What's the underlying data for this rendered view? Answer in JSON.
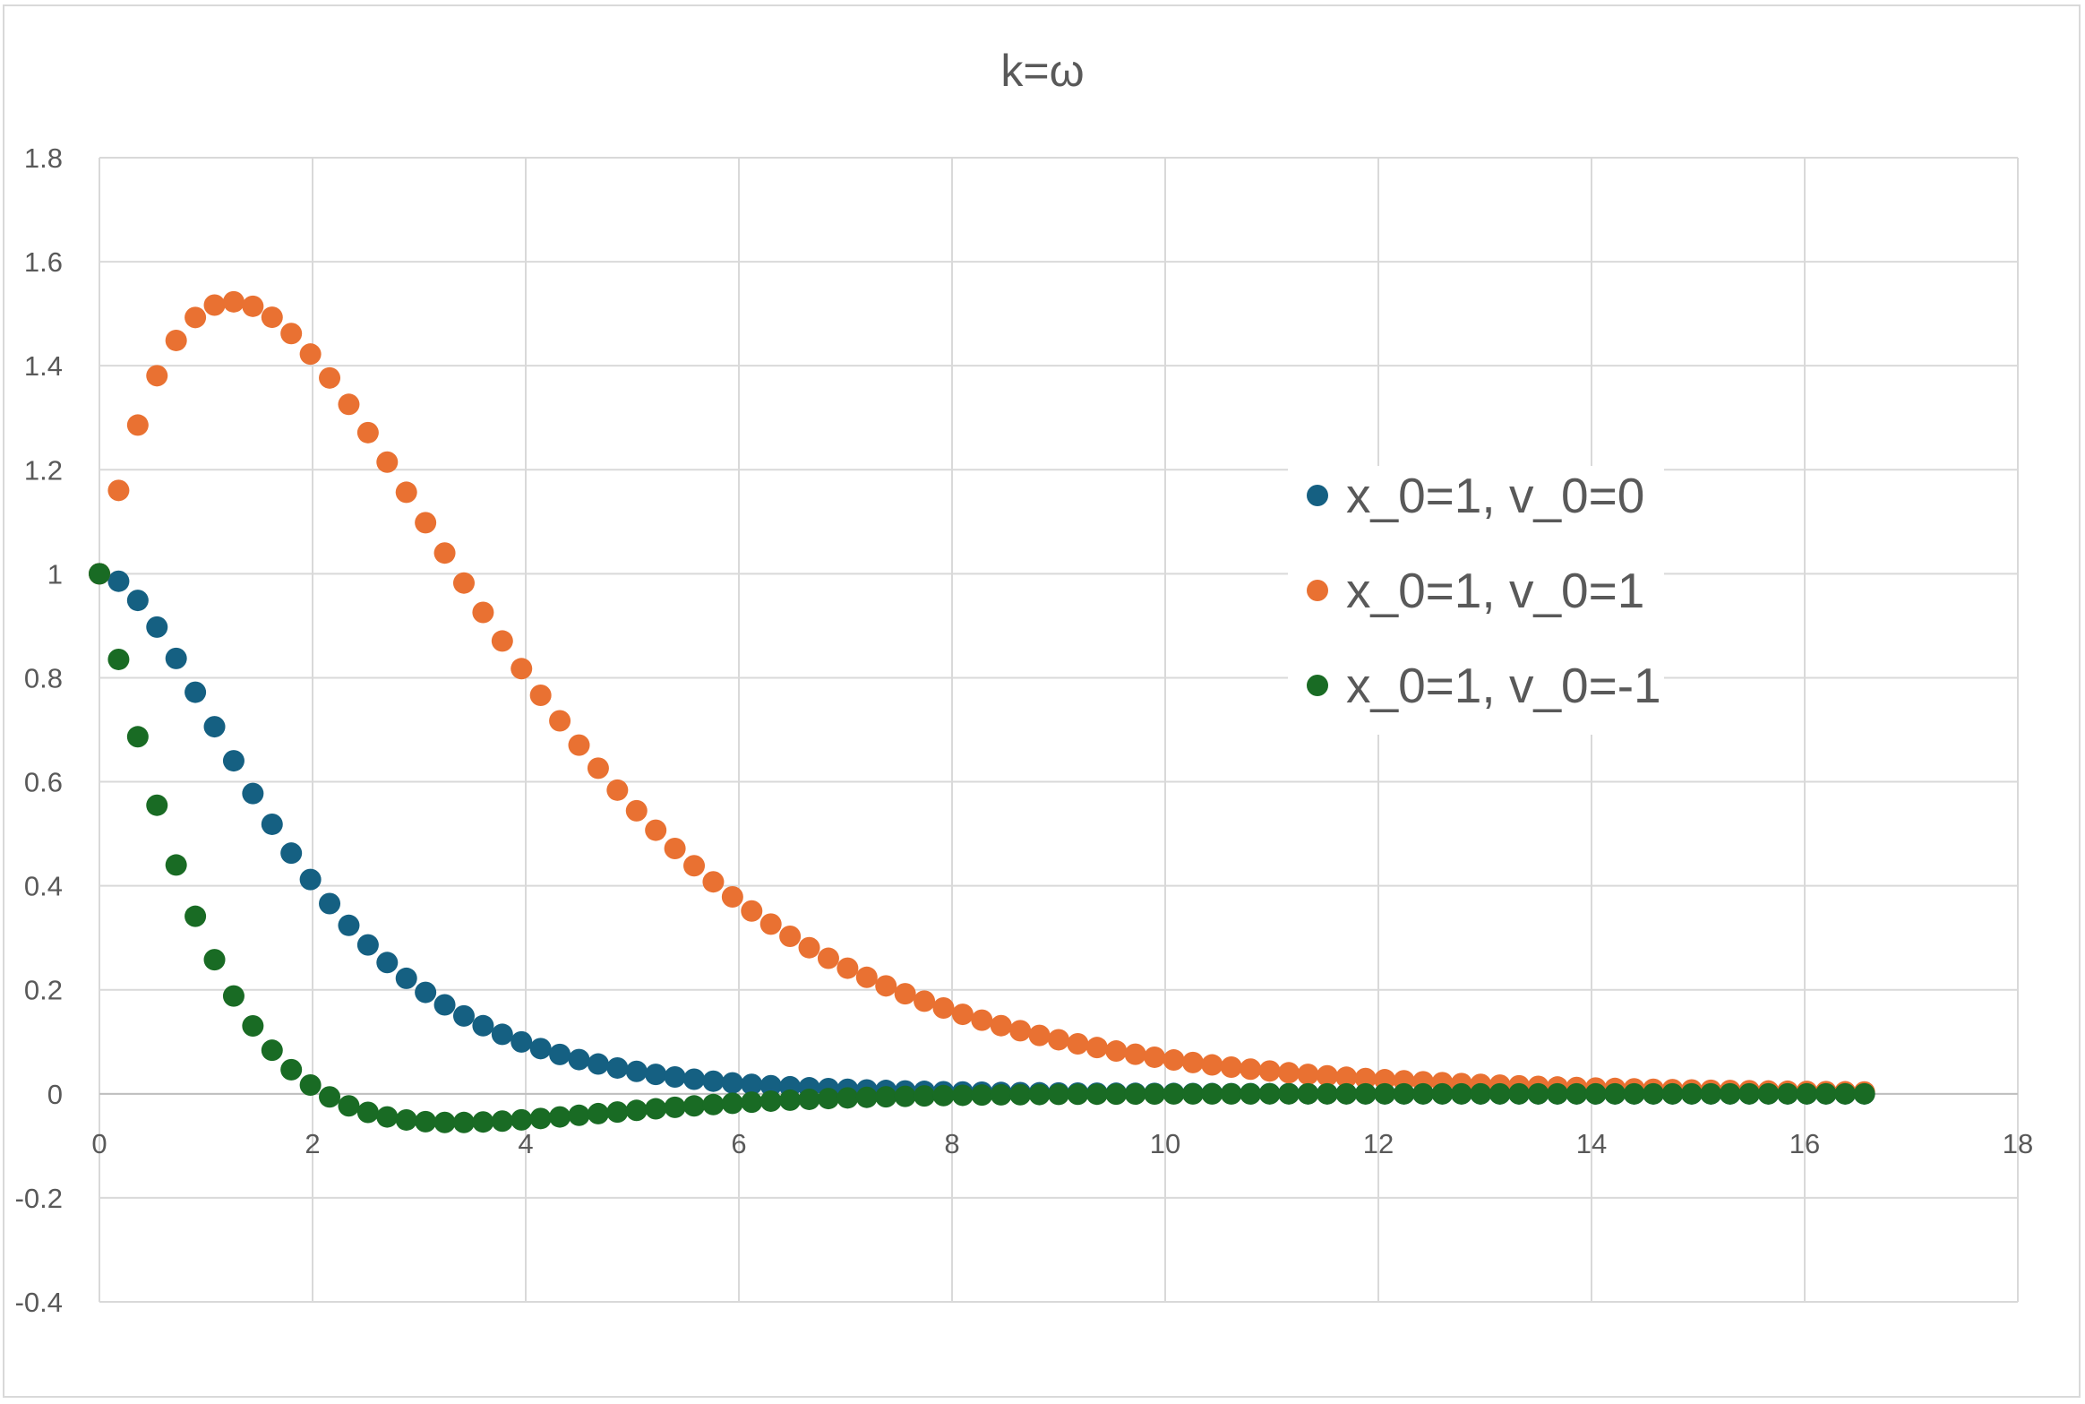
{
  "chart_data": {
    "type": "scatter",
    "title": "k=ω",
    "xlabel": "",
    "ylabel": "",
    "xlim": [
      0,
      18
    ],
    "ylim": [
      -0.4,
      1.8
    ],
    "xticks": [
      0,
      2,
      4,
      6,
      8,
      10,
      12,
      14,
      16,
      18
    ],
    "yticks": [
      -0.4,
      -0.2,
      0,
      0.2,
      0.4,
      0.6,
      0.8,
      1,
      1.2,
      1.4,
      1.6,
      1.8
    ],
    "grid": true,
    "legend_position": "right",
    "x": [
      0,
      0.18,
      0.36,
      0.54,
      0.72,
      0.9,
      1.08,
      1.26,
      1.44,
      1.62,
      1.8,
      1.98,
      2.16,
      2.34,
      2.52,
      2.7,
      2.88,
      3.06,
      3.24,
      3.42,
      3.6,
      3.78,
      3.96,
      4.14,
      4.32,
      4.5,
      4.68,
      4.86,
      5.04,
      5.22,
      5.4,
      5.58,
      5.76,
      5.94,
      6.12,
      6.3,
      6.48,
      6.66,
      6.84,
      7.02,
      7.2,
      7.38,
      7.56,
      7.74,
      7.92,
      8.1,
      8.28,
      8.46,
      8.64,
      8.82,
      9.0,
      9.18,
      9.36,
      9.54,
      9.72,
      9.9,
      10.08,
      10.26,
      10.44,
      10.62,
      10.8,
      10.98,
      11.16,
      11.34,
      11.52,
      11.7,
      11.88,
      12.06,
      12.24,
      12.42,
      12.6,
      12.78,
      12.96,
      13.14,
      13.32,
      13.5,
      13.68,
      13.86,
      14.04,
      14.22,
      14.4,
      14.58,
      14.76,
      14.94,
      15.12,
      15.3,
      15.48,
      15.66,
      15.84,
      16.02,
      16.2,
      16.38,
      16.56
    ],
    "series": [
      {
        "name": "x_0=1, v_0=0",
        "color": "#156082",
        "values": [
          1.0,
          0.9856,
          0.9488,
          0.8975,
          0.8372,
          0.7722,
          0.7059,
          0.6404,
          0.5775,
          0.5183,
          0.4628,
          0.4121,
          0.3658,
          0.3239,
          0.2863,
          0.2524,
          0.2221,
          0.1951,
          0.1711,
          0.1498,
          0.131,
          0.1144,
          0.0998,
          0.087,
          0.0757,
          0.0659,
          0.0573,
          0.0497,
          0.0432,
          0.0374,
          0.0324,
          0.0281,
          0.0243,
          0.021,
          0.0182,
          0.0157,
          0.0136,
          0.0117,
          0.0101,
          0.0087,
          0.0075,
          0.0065,
          0.0056,
          0.0048,
          0.0041,
          0.0036,
          0.0031,
          0.0026,
          0.0023,
          0.002,
          0.0017,
          0.0015,
          0.0012,
          0.0011,
          0.0009,
          0.0008,
          0.0007,
          0.0006,
          0.0005,
          0.0004,
          0.0004,
          0.0003,
          0.0003,
          0.0002,
          0.0002,
          0.0002,
          0.0001,
          0.0001,
          0.0001,
          0.0001,
          0.0001,
          0.0001,
          0.0,
          0.0,
          0.0,
          0.0,
          0.0,
          0.0,
          0.0,
          0.0,
          0.0,
          0.0,
          0.0,
          0.0,
          0.0,
          0.0,
          0.0,
          0.0,
          0.0,
          0.0,
          0.0,
          0.0,
          0.0
        ]
      },
      {
        "name": "x_0=1, v_0=1",
        "color": "#E97132",
        "values": [
          1.0,
          1.1603,
          1.2859,
          1.3808,
          1.4486,
          1.4928,
          1.5166,
          1.5229,
          1.5143,
          1.4932,
          1.4619,
          1.4224,
          1.3765,
          1.3257,
          1.2714,
          1.2147,
          1.1567,
          1.0982,
          1.0399,
          0.9822,
          0.9257,
          0.8707,
          0.8175,
          0.7663,
          0.7172,
          0.6705,
          0.6261,
          0.584,
          0.5443,
          0.5069,
          0.4717,
          0.4386,
          0.4076,
          0.3787,
          0.3516,
          0.3264,
          0.3029,
          0.281,
          0.2606,
          0.2416,
          0.224,
          0.2076,
          0.1924,
          0.1782,
          0.1651,
          0.1529,
          0.1416,
          0.1311,
          0.1214,
          0.1123,
          0.104,
          0.0962,
          0.089,
          0.0823,
          0.0761,
          0.0704,
          0.0651,
          0.0602,
          0.0556,
          0.0514,
          0.0475,
          0.0439,
          0.0405,
          0.0374,
          0.0346,
          0.0319,
          0.0295,
          0.0272,
          0.0251,
          0.0232,
          0.0214,
          0.0197,
          0.0182,
          0.0168,
          0.0155,
          0.0143,
          0.0132,
          0.0122,
          0.0112,
          0.0104,
          0.0096,
          0.0088,
          0.0081,
          0.0075,
          0.0069,
          0.0064,
          0.0059,
          0.0054,
          0.005,
          0.0046,
          0.0042,
          0.0039,
          0.0036
        ]
      },
      {
        "name": "x_0=1, v_0=-1",
        "color": "#196B24",
        "values": [
          1.0,
          0.8353,
          0.6866,
          0.5549,
          0.44,
          0.3414,
          0.2579,
          0.1881,
          0.1306,
          0.0838,
          0.0464,
          0.0169,
          -0.0059,
          -0.0231,
          -0.0356,
          -0.0444,
          -0.0502,
          -0.0535,
          -0.055,
          -0.0551,
          -0.0541,
          -0.0524,
          -0.0501,
          -0.0474,
          -0.0444,
          -0.0413,
          -0.0381,
          -0.035,
          -0.0318,
          -0.0288,
          -0.0259,
          -0.0232,
          -0.0206,
          -0.0182,
          -0.016,
          -0.014,
          -0.0122,
          -0.0106,
          -0.0091,
          -0.0078,
          -0.0067,
          -0.0057,
          -0.0048,
          -0.004,
          -0.0034,
          -0.0028,
          -0.0023,
          -0.0019,
          -0.0016,
          -0.0013,
          -0.001,
          -0.0008,
          -0.0007,
          -0.0005,
          -0.0004,
          -0.0003,
          -0.0002,
          -0.0002,
          -0.0001,
          -0.0001,
          -0.0001,
          0.0,
          0.0,
          0.0,
          0.0,
          0.0,
          0.0,
          0.0,
          0.0,
          0.0,
          0.0,
          0.0,
          0.0,
          0.0,
          0.0,
          0.0,
          0.0,
          0.0,
          0.0,
          0.0,
          0.0,
          0.0,
          0.0,
          0.0,
          0.0,
          0.0,
          0.0,
          0.0,
          0.0,
          0.0,
          0.0,
          0.0,
          0.0
        ]
      }
    ]
  }
}
